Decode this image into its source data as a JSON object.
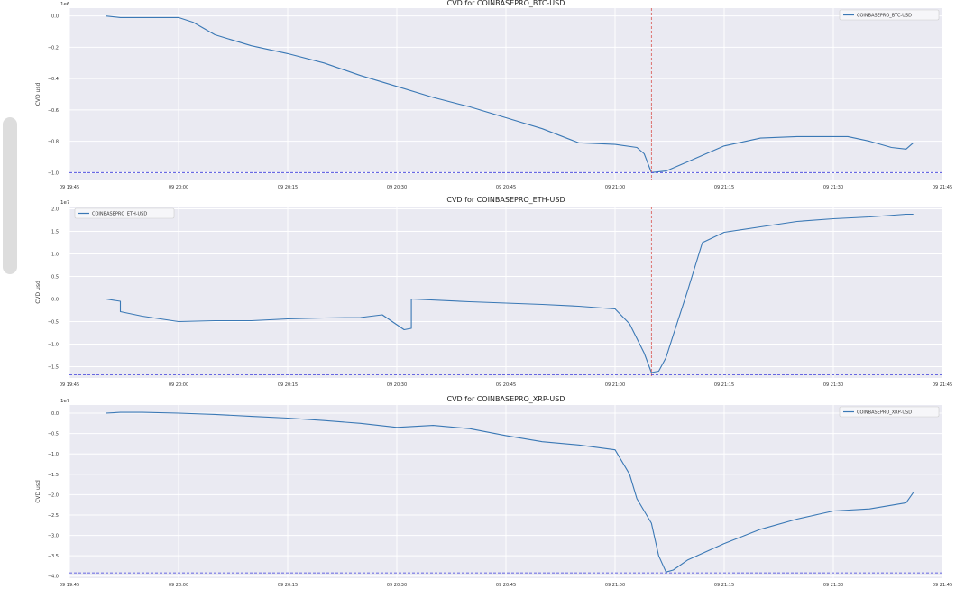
{
  "colors": {
    "plot_bg": "#eaeaf2",
    "grid": "#ffffff",
    "line": "#3a78b5",
    "event_line": "#d9534f",
    "min_line": "#3b3bdc",
    "legend_bg": "#f6f6f9"
  },
  "chart_data": [
    {
      "type": "line",
      "title": "CVD for COINBASEPRO_BTC-USD",
      "ylabel": "CVD usd",
      "y_multiplier": "1e6",
      "ylim": [
        -1.05,
        0.05
      ],
      "yticks": [
        0.0,
        -0.2,
        -0.4,
        -0.6,
        -0.8,
        -1.0
      ],
      "ytick_labels": [
        "0.0",
        "−0.2",
        "−0.4",
        "−0.6",
        "−0.8",
        "−1.0"
      ],
      "xlim": [
        "09 19:45",
        "09 21:45"
      ],
      "xtick_labels": [
        "09 19:45",
        "09 20:00",
        "09 20:15",
        "09 20:30",
        "09 20:45",
        "09 21:00",
        "09 21:15",
        "09 21:30",
        "09 21:45"
      ],
      "legend": "top-right",
      "series": [
        {
          "name": "COINBASEPRO_BTC-USD",
          "x": [
            "09 19:50",
            "09 19:52",
            "09 19:55",
            "09 20:00",
            "09 20:02",
            "09 20:05",
            "09 20:10",
            "09 20:15",
            "09 20:20",
            "09 20:25",
            "09 20:30",
            "09 20:35",
            "09 20:40",
            "09 20:45",
            "09 20:50",
            "09 20:55",
            "09 21:00",
            "09 21:03",
            "09 21:04",
            "09 21:05",
            "09 21:07",
            "09 21:10",
            "09 21:15",
            "09 21:20",
            "09 21:25",
            "09 21:30",
            "09 21:32",
            "09 21:35",
            "09 21:38",
            "09 21:40",
            "09 21:41"
          ],
          "y": [
            0.0,
            -0.01,
            -0.01,
            -0.01,
            -0.04,
            -0.12,
            -0.19,
            -0.24,
            -0.3,
            -0.38,
            -0.45,
            -0.52,
            -0.58,
            -0.65,
            -0.72,
            -0.81,
            -0.82,
            -0.84,
            -0.88,
            -1.0,
            -0.99,
            -0.93,
            -0.83,
            -0.78,
            -0.77,
            -0.77,
            -0.77,
            -0.8,
            -0.84,
            -0.85,
            -0.81
          ]
        }
      ],
      "event_x": "09 21:05",
      "min_y": -1.0
    },
    {
      "type": "line",
      "title": "CVD for COINBASEPRO_ETH-USD",
      "ylabel": "CVD usd",
      "y_multiplier": "1e7",
      "ylim": [
        -1.75,
        2.05
      ],
      "yticks": [
        2.0,
        1.5,
        1.0,
        0.5,
        0.0,
        -0.5,
        -1.0,
        -1.5
      ],
      "ytick_labels": [
        "2.0",
        "1.5",
        "1.0",
        "0.5",
        "0.0",
        "−0.5",
        "−1.0",
        "−1.5"
      ],
      "xlim": [
        "09 19:45",
        "09 21:45"
      ],
      "xtick_labels": [
        "09 19:45",
        "09 20:00",
        "09 20:15",
        "09 20:30",
        "09 20:45",
        "09 21:00",
        "09 21:15",
        "09 21:30",
        "09 21:45"
      ],
      "legend": "top-left",
      "series": [
        {
          "name": "COINBASEPRO_ETH-USD",
          "x": [
            "09 19:50",
            "09 19:52",
            "09 19:52",
            "09 19:55",
            "09 20:00",
            "09 20:05",
            "09 20:10",
            "09 20:15",
            "09 20:20",
            "09 20:25",
            "09 20:28",
            "09 20:31",
            "09 20:32",
            "09 20:32",
            "09 20:40",
            "09 20:45",
            "09 20:50",
            "09 20:55",
            "09 21:00",
            "09 21:02",
            "09 21:04",
            "09 21:05",
            "09 21:06",
            "09 21:07",
            "09 21:08",
            "09 21:10",
            "09 21:12",
            "09 21:15",
            "09 21:20",
            "09 21:25",
            "09 21:30",
            "09 21:35",
            "09 21:40",
            "09 21:41"
          ],
          "y": [
            0.0,
            -0.05,
            -0.28,
            -0.38,
            -0.5,
            -0.48,
            -0.48,
            -0.44,
            -0.42,
            -0.41,
            -0.35,
            -0.68,
            -0.65,
            0.0,
            -0.06,
            -0.09,
            -0.12,
            -0.16,
            -0.22,
            -0.55,
            -1.2,
            -1.63,
            -1.6,
            -1.3,
            -0.8,
            0.2,
            1.25,
            1.48,
            1.6,
            1.72,
            1.78,
            1.82,
            1.88,
            1.88
          ]
        }
      ],
      "event_x": "09 21:05",
      "min_y": -1.68
    },
    {
      "type": "line",
      "title": "CVD for COINBASEPRO_XRP-USD",
      "ylabel": "CVD usd",
      "y_multiplier": "1e7",
      "ylim": [
        -4.05,
        0.2
      ],
      "yticks": [
        0.0,
        -0.5,
        -1.0,
        -1.5,
        -2.0,
        -2.5,
        -3.0,
        -3.5,
        -4.0
      ],
      "ytick_labels": [
        "0.0",
        "−0.5",
        "−1.0",
        "−1.5",
        "−2.0",
        "−2.5",
        "−3.0",
        "−3.5",
        "−4.0"
      ],
      "xlim": [
        "09 19:45",
        "09 21:45"
      ],
      "xtick_labels": [
        "09 19:45",
        "09 20:00",
        "09 20:15",
        "09 20:30",
        "09 20:45",
        "09 21:00",
        "09 21:15",
        "09 21:30",
        "09 21:45"
      ],
      "legend": "top-right",
      "series": [
        {
          "name": "COINBASEPRO_XRP-USD",
          "x": [
            "09 19:50",
            "09 19:52",
            "09 19:55",
            "09 20:00",
            "09 20:05",
            "09 20:10",
            "09 20:15",
            "09 20:20",
            "09 20:25",
            "09 20:30",
            "09 20:35",
            "09 20:40",
            "09 20:45",
            "09 20:50",
            "09 20:55",
            "09 21:00",
            "09 21:02",
            "09 21:03",
            "09 21:05",
            "09 21:06",
            "09 21:07",
            "09 21:08",
            "09 21:10",
            "09 21:15",
            "09 21:20",
            "09 21:25",
            "09 21:30",
            "09 21:35",
            "09 21:40",
            "09 21:41"
          ],
          "y": [
            0.0,
            0.02,
            0.02,
            0.0,
            -0.03,
            -0.08,
            -0.12,
            -0.18,
            -0.25,
            -0.35,
            -0.3,
            -0.38,
            -0.55,
            -0.7,
            -0.78,
            -0.9,
            -1.5,
            -2.1,
            -2.7,
            -3.5,
            -3.9,
            -3.85,
            -3.6,
            -3.2,
            -2.85,
            -2.6,
            -2.4,
            -2.35,
            -2.2,
            -1.95
          ]
        }
      ],
      "event_x": "09 21:07",
      "min_y": -3.92
    }
  ]
}
